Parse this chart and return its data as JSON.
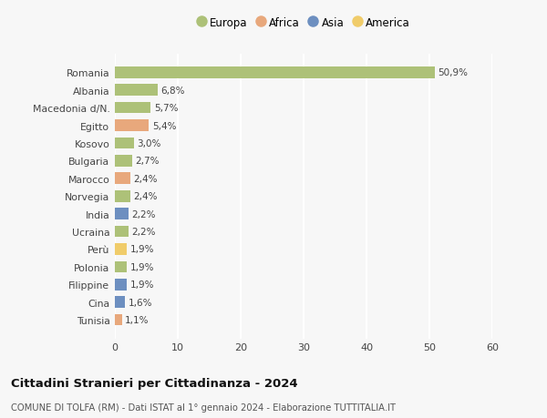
{
  "title": "Cittadini Stranieri per Cittadinanza - 2024",
  "subtitle": "COMUNE DI TOLFA (RM) - Dati ISTAT al 1° gennaio 2024 - Elaborazione TUTTITALIA.IT",
  "countries": [
    "Romania",
    "Albania",
    "Macedonia d/N.",
    "Egitto",
    "Kosovo",
    "Bulgaria",
    "Marocco",
    "Norvegia",
    "India",
    "Ucraina",
    "Perù",
    "Polonia",
    "Filippine",
    "Cina",
    "Tunisia"
  ],
  "values": [
    50.9,
    6.8,
    5.7,
    5.4,
    3.0,
    2.7,
    2.4,
    2.4,
    2.2,
    2.2,
    1.9,
    1.9,
    1.9,
    1.6,
    1.1
  ],
  "labels": [
    "50,9%",
    "6,8%",
    "5,7%",
    "5,4%",
    "3,0%",
    "2,7%",
    "2,4%",
    "2,4%",
    "2,2%",
    "2,2%",
    "1,9%",
    "1,9%",
    "1,9%",
    "1,6%",
    "1,1%"
  ],
  "continents": [
    "Europa",
    "Europa",
    "Europa",
    "Africa",
    "Europa",
    "Europa",
    "Africa",
    "Europa",
    "Asia",
    "Europa",
    "America",
    "Europa",
    "Asia",
    "Asia",
    "Africa"
  ],
  "continent_colors": {
    "Europa": "#adc178",
    "Africa": "#e8a87c",
    "Asia": "#6d8fc0",
    "America": "#f0cc6a"
  },
  "legend_order": [
    "Europa",
    "Africa",
    "Asia",
    "America"
  ],
  "xlim": [
    0,
    60
  ],
  "xticks": [
    0,
    10,
    20,
    30,
    40,
    50,
    60
  ],
  "background_color": "#f7f7f7",
  "grid_color": "#ffffff",
  "bar_height": 0.65
}
